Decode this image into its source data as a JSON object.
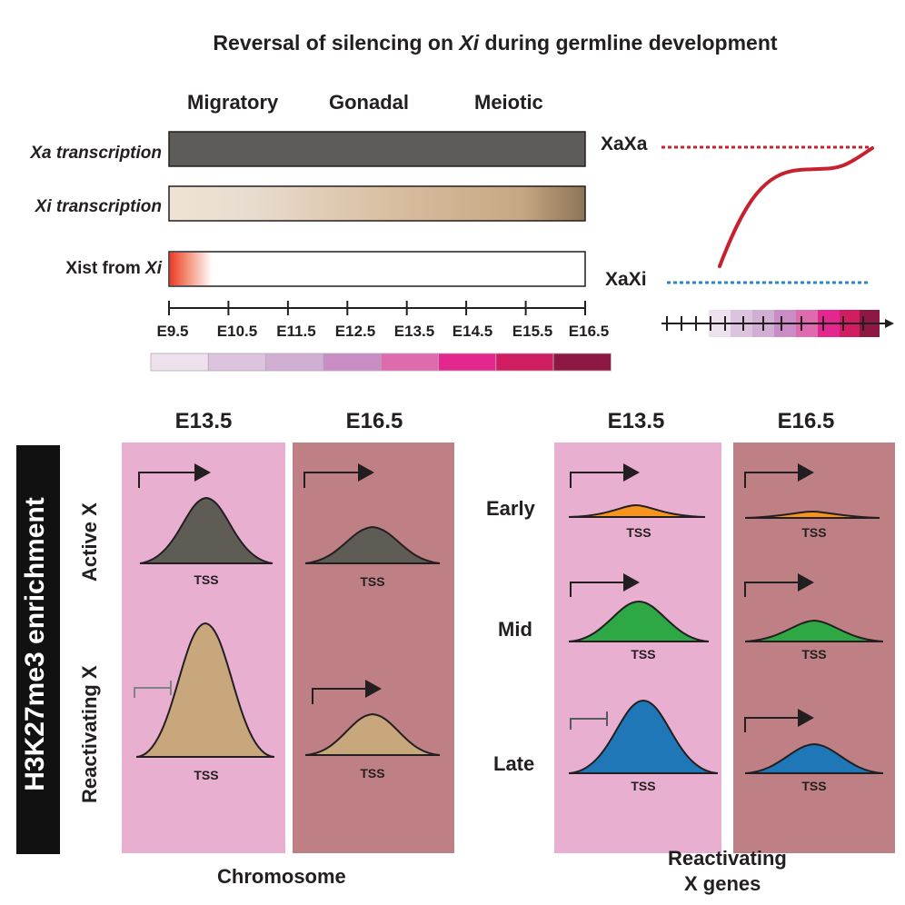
{
  "title_main": "Reversal of silencing on ",
  "title_xi": "Xi",
  "title_rest": " during germline development",
  "stages": [
    "Migratory",
    "Gonadal",
    "Meiotic"
  ],
  "rows": {
    "xa_transcription": "Xa transcription",
    "xi_transcription": "Xi transcription",
    "xist_prefix": "Xist from ",
    "xist_xi": "Xi"
  },
  "timeline": [
    "E9.5",
    "E10.5",
    "E11.5",
    "E12.5",
    "E13.5",
    "E14.5",
    "E15.5",
    "E16.5"
  ],
  "scale_colors": [
    "#ede1ed",
    "#dcc3de",
    "#d1aed4",
    "#c98cc5",
    "#de6bad",
    "#e4268f",
    "#d01d61",
    "#8d1844"
  ],
  "curve_labels": {
    "top": "XaXa",
    "bottom": "XaXi"
  },
  "lower": {
    "ylabel": "H3K27me3 enrichment",
    "left_headers": [
      "E13.5",
      "E16.5"
    ],
    "right_headers": [
      "E13.5",
      "E16.5"
    ],
    "left_rows": [
      "Active X",
      "Reactivating X"
    ],
    "right_rows": [
      "Early",
      "Mid",
      "Late"
    ],
    "tss": "TSS",
    "left_caption": "Chromosome",
    "right_caption_1": "Reactivating",
    "right_caption_2": "X genes"
  },
  "colors": {
    "panel_e13": "#e9afd1",
    "panel_e16": "#bf8085",
    "active_peak": "#5e5c55",
    "reactivating_peak": "#c7a77b",
    "early_peak": "#f7941d",
    "mid_peak": "#2da845",
    "late_peak": "#1f77b8",
    "xa_bar": "#5e5c58",
    "xaxa_line": "#c7202f",
    "xaxi_line": "#2b86c5"
  }
}
